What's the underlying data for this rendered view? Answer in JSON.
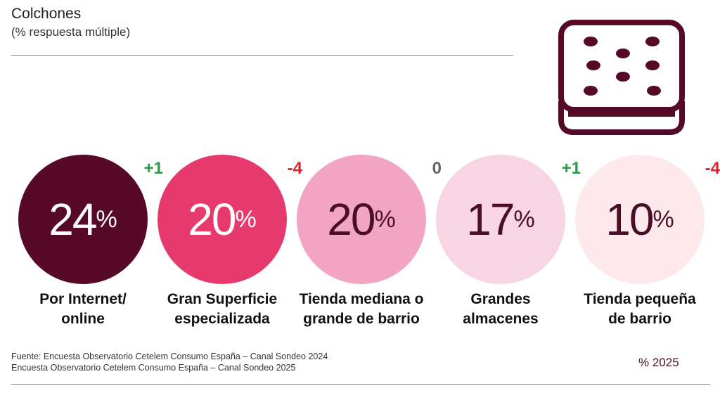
{
  "header": {
    "title": "Colchones",
    "subtitle": "(% respuesta múltiple)"
  },
  "icon": "mattress-icon",
  "colors": {
    "c1": "#560a27",
    "c2": "#e63a6d",
    "c3": "#f2a4c3",
    "c4": "#f8d5e3",
    "c5": "#fde9ec",
    "positive": "#2e9a48",
    "negative": "#e01e2b",
    "neutral": "#666666",
    "text_dark": "#4a0f26"
  },
  "chart_data": {
    "type": "bubble-values",
    "title": "Colchones",
    "subtitle": "(% respuesta múltiple)",
    "unit": "%",
    "legend": "% 2025",
    "categories": [
      "Por Internet/\nonline",
      "Gran Superficie\nespecializada",
      "Tienda mediana o\ngrande de barrio",
      "Grandes\nalmacenes",
      "Tienda pequeña\nde barrio"
    ],
    "values": [
      24,
      20,
      20,
      17,
      10
    ],
    "changes": [
      "+1",
      "-4",
      "0",
      "+1",
      "-4"
    ]
  },
  "footer": {
    "source_line1": "Fuente: Encuesta Observatorio Cetelem Consumo España – Canal Sondeo 2024",
    "source_line2": "Encuesta Observatorio Cetelem Consumo España – Canal Sondeo 2025",
    "legend": "% 2025"
  }
}
